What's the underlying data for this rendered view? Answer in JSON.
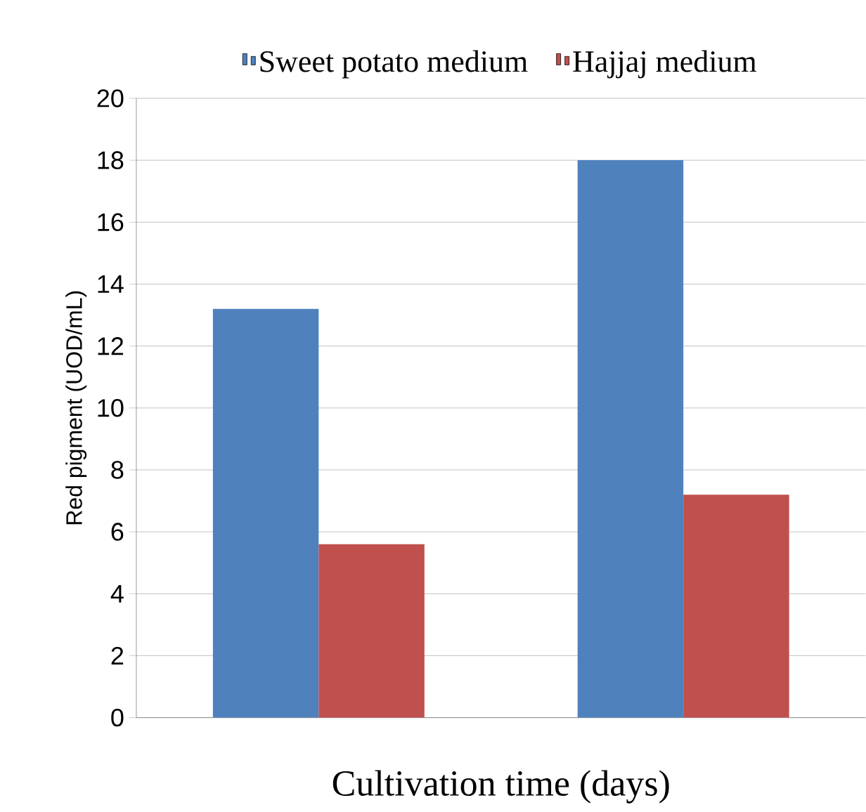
{
  "chart_data": {
    "type": "bar",
    "xlabel": "Cultivation time (days)",
    "ylabel": "Red pigment (UOD/mL)",
    "categories": [
      null,
      null
    ],
    "series": [
      {
        "name": "Sweet potato medium",
        "color": "#4f81bd",
        "values": [
          13.2,
          18.0
        ]
      },
      {
        "name": "Hajjaj medium",
        "color": "#c0504d",
        "values": [
          5.6,
          7.2
        ]
      }
    ],
    "ylim": [
      0,
      20
    ],
    "yticks": [
      0,
      2,
      4,
      6,
      8,
      10,
      12,
      14,
      16,
      18,
      20
    ],
    "grid": "y",
    "legend": "top"
  }
}
